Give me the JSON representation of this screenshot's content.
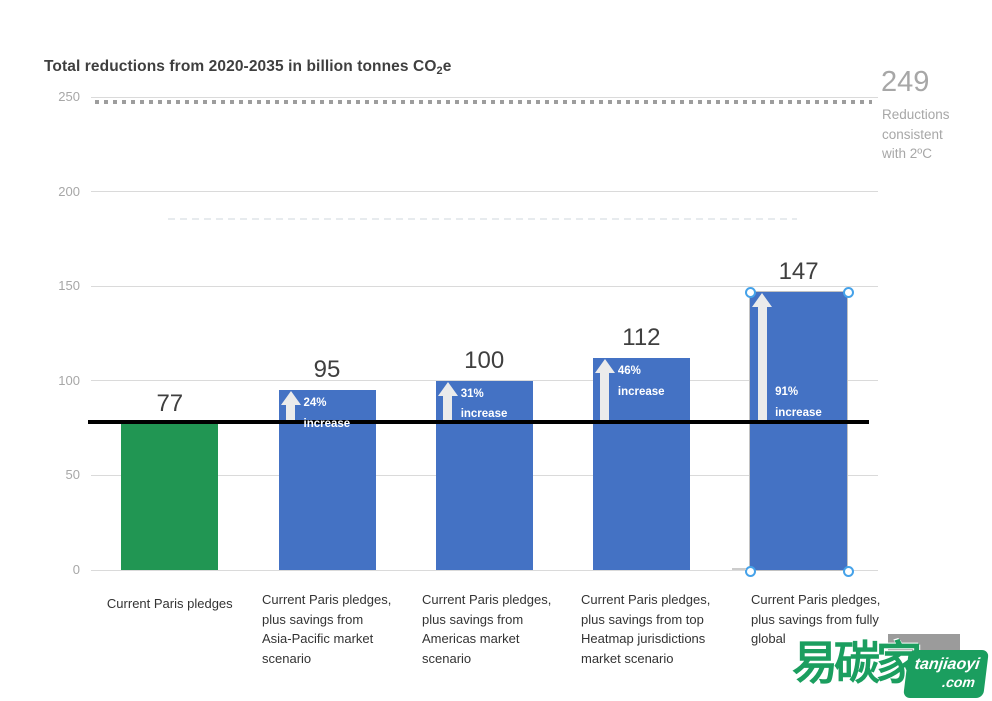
{
  "chart_data": {
    "type": "bar",
    "title": "Total reductions from 2020-2035 in billion tonnes CO2e",
    "title_parts": {
      "prefix": "Total reductions from 2020-2035 in billion tonnes CO",
      "sub": "2",
      "suffix": "e"
    },
    "ylim": [
      0,
      250
    ],
    "yticks": [
      "250",
      "200",
      "150",
      "100",
      "50",
      "0"
    ],
    "grid": true,
    "legend": "none",
    "baseline": {
      "value": 77
    },
    "reference_line": {
      "value": 249,
      "style": "dotted",
      "label": "249",
      "sublabel_lines": [
        "Reductions",
        "consistent",
        "with 2ºC"
      ]
    },
    "categories": [
      "Current Paris pledges",
      "Current Paris pledges, plus savings from Asia-Pacific market scenario",
      "Current Paris pledges, plus savings from Americas market scenario",
      "Current Paris pledges, plus savings from top Heatmap jurisdictions market scenario",
      "Current Paris pledges, plus savings from fully global"
    ],
    "bars": [
      {
        "category_lines": [
          "Current Paris pledges"
        ],
        "value": 77,
        "value_label": "77",
        "color": "#219653",
        "selected": false
      },
      {
        "category_lines": [
          "Current Paris pledges,",
          "plus savings from",
          "Asia-Pacific market",
          "scenario"
        ],
        "value": 95,
        "value_label": "95",
        "color": "#4472C4",
        "increase_lines": [
          "24%",
          "increase"
        ],
        "increase_label_position": "top",
        "selected": false
      },
      {
        "category_lines": [
          "Current Paris pledges,",
          "plus savings from",
          "Americas market",
          "scenario"
        ],
        "value": 100,
        "value_label": "100",
        "color": "#4472C4",
        "increase_lines": [
          "31%",
          "increase"
        ],
        "increase_label_position": "top",
        "selected": false
      },
      {
        "category_lines": [
          "Current Paris pledges,",
          "plus savings from top",
          "Heatmap jurisdictions",
          "market scenario"
        ],
        "value": 112,
        "value_label": "112",
        "color": "#4472C4",
        "increase_lines": [
          "46%",
          "increase"
        ],
        "increase_label_position": "top",
        "selected": false
      },
      {
        "category_lines": [
          "Current Paris pledges,",
          "plus savings from fully",
          "global"
        ],
        "value": 147,
        "value_label": "147",
        "color": "#4472C4",
        "increase_lines": [
          "91%",
          "increase"
        ],
        "increase_label_position": "bottom",
        "selected": true
      }
    ],
    "colors": {
      "bar_green": "#219653",
      "bar_blue": "#4472C4",
      "baseline_line": "#000000",
      "reference_dots": "#9D9D9D",
      "gridline": "#DADADA",
      "tick_text": "#A7A7A7",
      "value_text": "#3F3F3F",
      "arrow": "#EBEBEB",
      "selection_handle": "#45A2E9"
    }
  },
  "watermark": {
    "cjk_text": "易碳家",
    "badge_line1": "tanjiaoyi",
    "badge_line2": ".com",
    "color": "#1B9E5F"
  }
}
